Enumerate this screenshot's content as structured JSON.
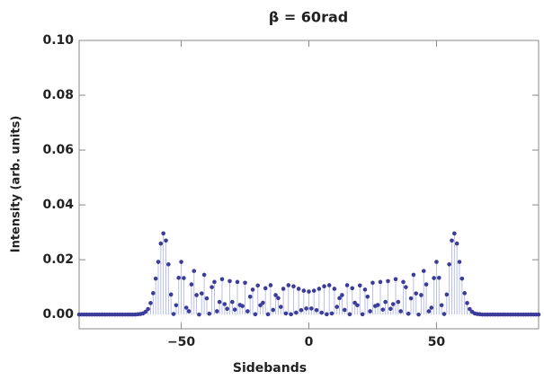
{
  "chart_data": {
    "type": "stem",
    "title": "β = 60rad",
    "x_label": "Sidebands",
    "y_label": "Intensity (arb. units)",
    "stem_color": "#b8bfe6",
    "color": "#3b3b98",
    "xlim": [
      -90,
      90
    ],
    "ylim": [
      -0.0052,
      0.1
    ],
    "xticks": [
      {
        "value": -50,
        "label": "−50"
      },
      0,
      50
    ],
    "yticks": [
      {
        "value": 0,
        "label": "0.00"
      },
      {
        "value": 0.02,
        "label": "0.02"
      },
      {
        "value": 0.04,
        "label": "0.04"
      },
      {
        "value": 0.06,
        "label": "0.06"
      },
      {
        "value": 0.08,
        "label": "0.08"
      },
      {
        "value": 0.1,
        "label": "0.10"
      }
    ],
    "x": [
      -90,
      -89,
      -88,
      -87,
      -86,
      -85,
      -84,
      -83,
      -82,
      -81,
      -80,
      -79,
      -78,
      -77,
      -76,
      -75,
      -74,
      -73,
      -72,
      -71,
      -70,
      -69,
      -68,
      -67,
      -66,
      -65,
      -64,
      -63,
      -62,
      -61,
      -60,
      -59,
      -58,
      -57,
      -56,
      -55,
      -54,
      -53,
      -52,
      -51,
      -50,
      -49,
      -48,
      -47,
      -46,
      -45,
      -44,
      -43,
      -42,
      -41,
      -40,
      -39,
      -38,
      -37,
      -36,
      -35,
      -34,
      -33,
      -32,
      -31,
      -30,
      -29,
      -28,
      -27,
      -26,
      -25,
      -24,
      -23,
      -22,
      -21,
      -20,
      -19,
      -18,
      -17,
      -16,
      -15,
      -14,
      -13,
      -12,
      -11,
      -10,
      -9,
      -8,
      -7,
      -6,
      -5,
      -4,
      -3,
      -2,
      -1,
      0,
      1,
      2,
      3,
      4,
      5,
      6,
      7,
      8,
      9,
      10,
      11,
      12,
      13,
      14,
      15,
      16,
      17,
      18,
      19,
      20,
      21,
      22,
      23,
      24,
      25,
      26,
      27,
      28,
      29,
      30,
      31,
      32,
      33,
      34,
      35,
      36,
      37,
      38,
      39,
      40,
      41,
      42,
      43,
      44,
      45,
      46,
      47,
      48,
      49,
      50,
      51,
      52,
      53,
      54,
      55,
      56,
      57,
      58,
      59,
      60,
      61,
      62,
      63,
      64,
      65,
      66,
      67,
      68,
      69,
      70,
      71,
      72,
      73,
      74,
      75,
      76,
      77,
      78,
      79,
      80,
      81,
      82,
      83,
      84,
      85,
      86,
      87,
      88,
      89,
      90
    ],
    "values": [
      0,
      0,
      0,
      0,
      0,
      0,
      0,
      0,
      0,
      0,
      0,
      0,
      0,
      0,
      0,
      0,
      0,
      0,
      0,
      0,
      0,
      0,
      0,
      0.0001,
      0.0002,
      0.0004,
      0.001,
      0.002,
      0.0042,
      0.0078,
      0.0131,
      0.0192,
      0.0259,
      0.0296,
      0.027,
      0.0183,
      0.0073,
      0.0002,
      0.0034,
      0.0134,
      0.0192,
      0.0133,
      0.0025,
      0.0012,
      0.011,
      0.0159,
      0.0071,
      0,
      0.0077,
      0.0145,
      0.0059,
      0.0003,
      0.01,
      0.0119,
      0.0012,
      0.0046,
      0.0129,
      0.0038,
      0.0021,
      0.0122,
      0.0046,
      0.0018,
      0.0119,
      0.0035,
      0.0031,
      0.0116,
      0.0012,
      0.0065,
      0.0091,
      0.0001,
      0.0106,
      0.0034,
      0.0043,
      0.0096,
      0.0001,
      0.0107,
      0.0017,
      0.0071,
      0.006,
      0.0028,
      0.0094,
      0.0004,
      0.0107,
      0.0001,
      0.0103,
      0.0007,
      0.0094,
      0.0016,
      0.0087,
      0.0022,
      0.0084,
      0.0022,
      0.0087,
      0.0016,
      0.0094,
      0.0007,
      0.0103,
      0.0001,
      0.0107,
      0.0004,
      0.0094,
      0.0028,
      0.006,
      0.0071,
      0.0017,
      0.0107,
      0.0001,
      0.0096,
      0.0043,
      0.0034,
      0.0106,
      0.0001,
      0.0091,
      0.0065,
      0.0012,
      0.0116,
      0.0031,
      0.0035,
      0.0119,
      0.0018,
      0.0046,
      0.0122,
      0.0021,
      0.0038,
      0.0129,
      0.0046,
      0.0012,
      0.0119,
      0.01,
      0.0003,
      0.0059,
      0.0145,
      0.0077,
      0,
      0.0071,
      0.0159,
      0.011,
      0.0012,
      0.0025,
      0.0133,
      0.0192,
      0.0134,
      0.0034,
      0.0002,
      0.0073,
      0.0183,
      0.027,
      0.0296,
      0.0259,
      0.0192,
      0.0131,
      0.0078,
      0.0042,
      0.002,
      0.001,
      0.0004,
      0.0002,
      0.0001,
      0,
      0,
      0,
      0,
      0,
      0,
      0,
      0,
      0,
      0,
      0,
      0,
      0,
      0,
      0,
      0,
      0,
      0,
      0,
      0,
      0,
      0,
      0
    ]
  }
}
